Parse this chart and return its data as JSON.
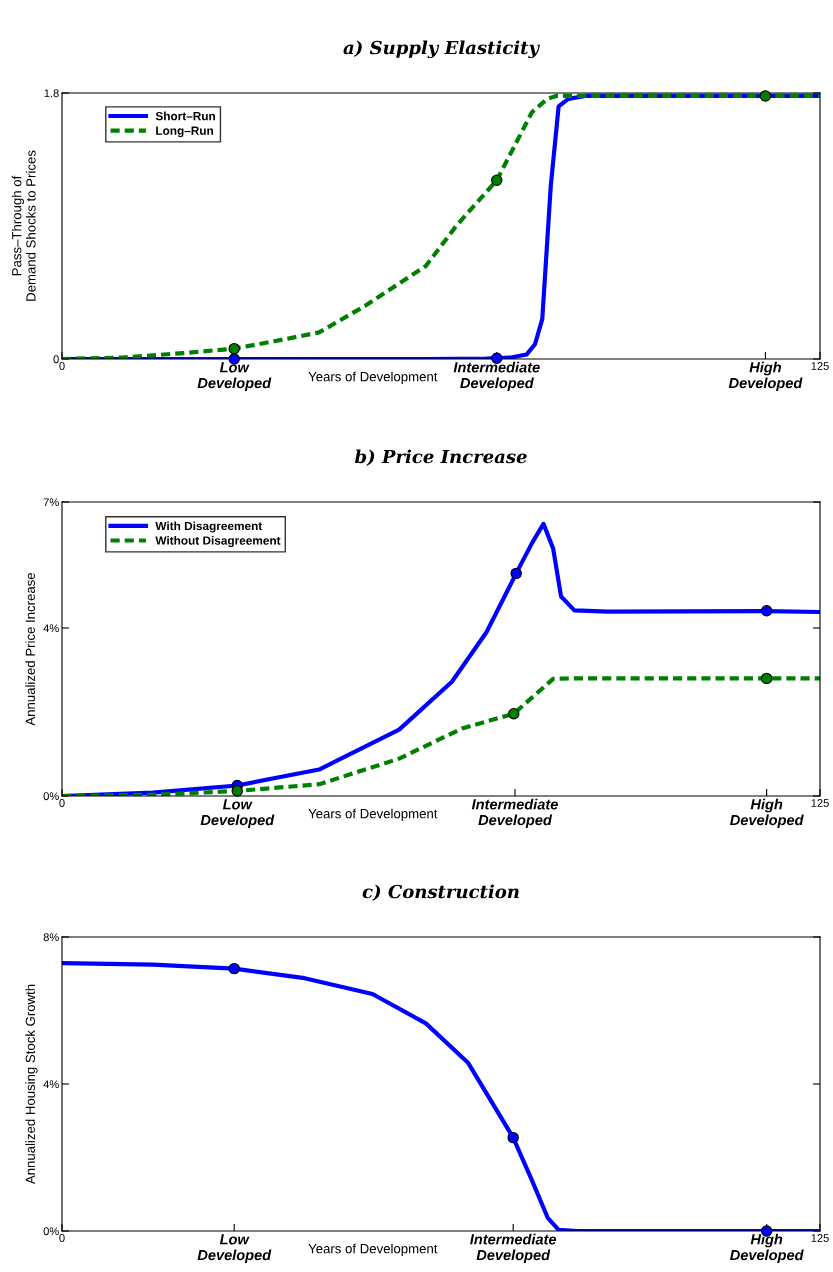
{
  "chart_data": [
    {
      "type": "line",
      "title": "a) Supply Elasticity",
      "xlabel": "Years of Development",
      "ylabel": "Pass–Through of\nDemand Shocks to Prices",
      "xlim": [
        0,
        125
      ],
      "ylim": [
        0,
        1.8
      ],
      "yticks": [
        0,
        1.8
      ],
      "xticks": [
        0,
        {
          "value": 28.4,
          "label": "Low\nDeveloped"
        },
        {
          "value": 71.7,
          "label": "Intermediate\nDeveloped"
        },
        {
          "value": 116,
          "label": "High\nDeveloped"
        },
        125
      ],
      "legend": "top left",
      "grid": false,
      "series": [
        {
          "name": "Short–Run",
          "color": "#0000ff",
          "line_style": "solid",
          "x": [
            0,
            20,
            40,
            60,
            70,
            74,
            76.6,
            78,
            79.2,
            80.6,
            81.9,
            83.5,
            86.3,
            100,
            125
          ],
          "values": [
            0,
            0,
            0,
            0,
            0.003,
            0.01,
            0.03,
            0.1,
            0.27,
            1.17,
            1.71,
            1.76,
            1.78,
            1.78,
            1.78
          ]
        },
        {
          "name": "Long–Run",
          "color": "#008000",
          "line_style": "dashed",
          "x": [
            0,
            10,
            20,
            28.4,
            35,
            42.4,
            50,
            60,
            65,
            71.7,
            77.5,
            80,
            81.5,
            85,
            125
          ],
          "values": [
            0,
            0.01,
            0.04,
            0.07,
            0.12,
            0.18,
            0.36,
            0.63,
            0.9,
            1.21,
            1.67,
            1.76,
            1.78,
            1.78,
            1.78
          ]
        },
        {
          "type": "scatter",
          "marker": "circle",
          "color": "#0000ff",
          "x": [
            28.4,
            71.7
          ],
          "values": [
            0,
            0.005
          ]
        },
        {
          "type": "scatter",
          "marker": "circle",
          "color": "#008000",
          "x": [
            28.4,
            71.7,
            116
          ],
          "values": [
            0.07,
            1.21,
            1.78
          ]
        }
      ]
    },
    {
      "type": "line",
      "title": "b) Price Increase",
      "xlabel": "Years of Development",
      "ylabel": "Annualized Price Increase",
      "xlim": [
        0,
        125
      ],
      "ylim": [
        0,
        7
      ],
      "yticks": [
        {
          "value": 0,
          "label": "0%"
        },
        {
          "value": 4,
          "label": "4%"
        },
        {
          "value": 7,
          "label": "7%"
        }
      ],
      "xticks": [
        0,
        {
          "value": 28.9,
          "label": "Low\nDeveloped"
        },
        {
          "value": 74.7,
          "label": "Intermediate\nDeveloped"
        },
        {
          "value": 116.2,
          "label": "High\nDeveloped"
        },
        125
      ],
      "legend": "top left",
      "grid": false,
      "series": [
        {
          "name": "With Disagreement",
          "color": "#0000ff",
          "line_style": "solid",
          "x": [
            0,
            15,
            28.9,
            42.4,
            55.6,
            64.3,
            70,
            74.9,
            77.5,
            79.4,
            81,
            82.3,
            84.5,
            90,
            116.2,
            125
          ],
          "values": [
            0,
            0.08,
            0.25,
            0.63,
            1.58,
            2.72,
            3.9,
            5.3,
            6.02,
            6.48,
            5.89,
            4.75,
            4.42,
            4.39,
            4.4,
            4.38
          ]
        },
        {
          "name": "Without Disagreement",
          "color": "#008000",
          "line_style": "dashed",
          "x": [
            0,
            15,
            28.9,
            42.4,
            55.6,
            66,
            74.5,
            81,
            84,
            116.2,
            125
          ],
          "values": [
            0,
            0.03,
            0.12,
            0.28,
            0.89,
            1.61,
            1.96,
            2.79,
            2.8,
            2.8,
            2.8
          ]
        },
        {
          "type": "scatter",
          "marker": "circle",
          "color": "#0000ff",
          "x": [
            28.9,
            74.9,
            116.2
          ],
          "values": [
            0.25,
            5.3,
            4.41
          ]
        },
        {
          "type": "scatter",
          "marker": "circle",
          "color": "#008000",
          "x": [
            28.9,
            74.5,
            116.2
          ],
          "values": [
            0.12,
            1.96,
            2.8
          ]
        }
      ]
    },
    {
      "type": "line",
      "title": "c) Construction",
      "xlabel": "Years of Development",
      "ylabel": "Annualized Housing Stock Growth",
      "xlim": [
        0,
        125
      ],
      "ylim": [
        0,
        8
      ],
      "yticks": [
        {
          "value": 0,
          "label": "0%"
        },
        {
          "value": 4,
          "label": "4%"
        },
        {
          "value": 8,
          "label": "8%"
        }
      ],
      "xticks": [
        0,
        {
          "value": 28.4,
          "label": "Low\nDeveloped"
        },
        {
          "value": 74.4,
          "label": "Intermediate\nDeveloped"
        },
        {
          "value": 116.2,
          "label": "High\nDeveloped"
        },
        125
      ],
      "grid": false,
      "series": [
        {
          "color": "#0000ff",
          "line_style": "solid",
          "x": [
            0,
            15,
            28.4,
            40,
            51.2,
            60,
            67,
            74.4,
            77.5,
            80.1,
            81.9,
            85,
            125
          ],
          "values": [
            7.29,
            7.25,
            7.14,
            6.88,
            6.45,
            5.65,
            4.57,
            2.54,
            1.38,
            0.36,
            0.03,
            0,
            0
          ]
        },
        {
          "type": "scatter",
          "marker": "circle",
          "color": "#0000ff",
          "x": [
            28.4,
            74.4,
            116.2
          ],
          "values": [
            7.14,
            2.54,
            0
          ]
        }
      ]
    }
  ]
}
